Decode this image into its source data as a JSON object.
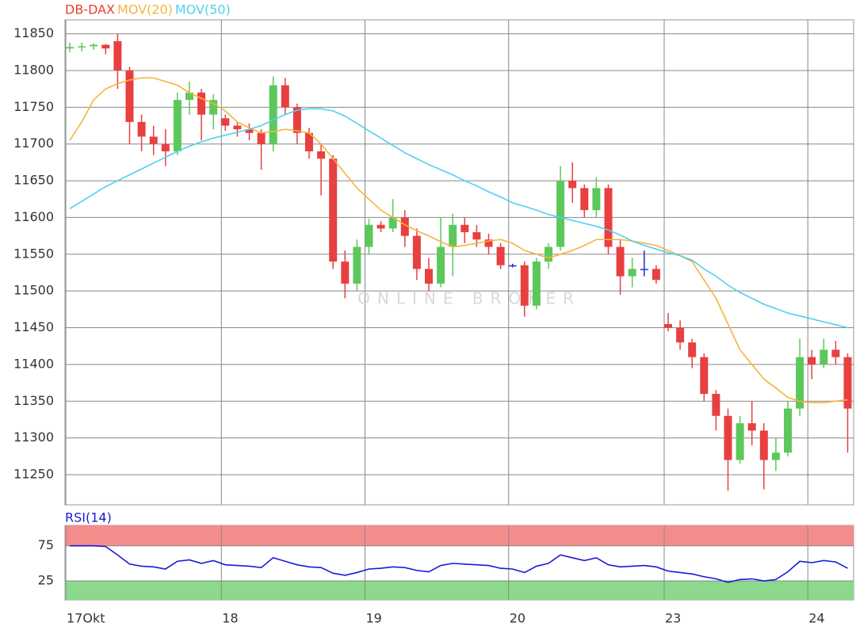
{
  "chart_data": [
    {
      "type": "candlestick",
      "name": "DB-DAX",
      "name_color": "#e8412c",
      "up_color": "#5cc85c",
      "down_color": "#e84040",
      "flat_color": "#2a2ad0",
      "watermark": "ONLINE BROKER",
      "open": [
        11830,
        11832,
        11833,
        11835,
        11840,
        11800,
        11730,
        11710,
        11700,
        11690,
        11760,
        11770,
        11740,
        11735,
        11725,
        11720,
        11715,
        11700,
        11780,
        11750,
        11715,
        11690,
        11680,
        11540,
        11510,
        11560,
        11590,
        11585,
        11600,
        11575,
        11530,
        11510,
        11560,
        11590,
        11580,
        11570,
        11560,
        11535,
        11535,
        11480,
        11540,
        11560,
        11650,
        11640,
        11610,
        11640,
        11560,
        11520,
        11530,
        11530,
        11455,
        11450,
        11430,
        11410,
        11360,
        11330,
        11270,
        11320,
        11310,
        11270,
        11280,
        11340,
        11410,
        11400,
        11420,
        11410
      ],
      "high": [
        11838,
        11838,
        11837,
        11836,
        11850,
        11805,
        11740,
        11725,
        11720,
        11770,
        11785,
        11775,
        11768,
        11740,
        11730,
        11728,
        11720,
        11792,
        11790,
        11755,
        11722,
        11700,
        11685,
        11555,
        11570,
        11598,
        11595,
        11625,
        11610,
        11585,
        11545,
        11600,
        11605,
        11600,
        11590,
        11578,
        11565,
        11537,
        11540,
        11545,
        11565,
        11670,
        11675,
        11645,
        11655,
        11645,
        11570,
        11545,
        11555,
        11535,
        11470,
        11460,
        11435,
        11415,
        11365,
        11340,
        11330,
        11350,
        11320,
        11300,
        11350,
        11435,
        11420,
        11435,
        11432,
        11415
      ],
      "low": [
        11825,
        11826,
        11828,
        11822,
        11775,
        11700,
        11690,
        11685,
        11670,
        11685,
        11740,
        11705,
        11720,
        11718,
        11710,
        11705,
        11665,
        11690,
        11740,
        11700,
        11680,
        11630,
        11530,
        11490,
        11500,
        11550,
        11580,
        11580,
        11560,
        11515,
        11500,
        11505,
        11520,
        11565,
        11560,
        11550,
        11530,
        11532,
        11465,
        11475,
        11530,
        11555,
        11620,
        11600,
        11600,
        11550,
        11495,
        11505,
        11520,
        11510,
        11445,
        11420,
        11395,
        11350,
        11310,
        11228,
        11265,
        11290,
        11230,
        11255,
        11275,
        11330,
        11380,
        11395,
        11400,
        11280
      ],
      "close": [
        11832,
        11833,
        11835,
        11830,
        11800,
        11730,
        11710,
        11700,
        11690,
        11760,
        11770,
        11740,
        11760,
        11725,
        11720,
        11715,
        11700,
        11780,
        11750,
        11715,
        11690,
        11680,
        11540,
        11510,
        11560,
        11590,
        11585,
        11600,
        11575,
        11530,
        11510,
        11560,
        11590,
        11580,
        11570,
        11560,
        11535,
        11535,
        11480,
        11540,
        11560,
        11650,
        11640,
        11610,
        11640,
        11560,
        11520,
        11530,
        11530,
        11515,
        11450,
        11430,
        11410,
        11360,
        11330,
        11270,
        11320,
        11310,
        11270,
        11280,
        11340,
        11410,
        11400,
        11420,
        11410,
        11340
      ],
      "series": [
        {
          "name": "MOV(20)",
          "color": "#f5b43c",
          "values": [
            11705,
            11730,
            11760,
            11775,
            11782,
            11787,
            11790,
            11790,
            11785,
            11780,
            11770,
            11762,
            11755,
            11745,
            11730,
            11722,
            11715,
            11717,
            11720,
            11718,
            11715,
            11700,
            11680,
            11660,
            11640,
            11625,
            11610,
            11600,
            11590,
            11582,
            11575,
            11567,
            11560,
            11562,
            11565,
            11568,
            11570,
            11565,
            11555,
            11550,
            11545,
            11550,
            11555,
            11562,
            11570,
            11570,
            11570,
            11568,
            11565,
            11562,
            11555,
            11548,
            11540,
            11515,
            11490,
            11455,
            11420,
            11400,
            11380,
            11368,
            11355,
            11350,
            11348,
            11348,
            11350,
            11352
          ]
        },
        {
          "name": "MOV(50)",
          "color": "#4fd0f0",
          "values": [
            11612,
            11622,
            11632,
            11642,
            11650,
            11658,
            11666,
            11674,
            11682,
            11690,
            11697,
            11703,
            11708,
            11712,
            11716,
            11720,
            11725,
            11733,
            11740,
            11746,
            11748,
            11748,
            11745,
            11738,
            11728,
            11718,
            11708,
            11698,
            11688,
            11680,
            11672,
            11665,
            11658,
            11650,
            11643,
            11635,
            11628,
            11620,
            11615,
            11610,
            11604,
            11600,
            11596,
            11592,
            11588,
            11583,
            11576,
            11568,
            11562,
            11557,
            11552,
            11548,
            11542,
            11530,
            11520,
            11508,
            11498,
            11490,
            11482,
            11476,
            11470,
            11466,
            11462,
            11458,
            11454,
            11450
          ]
        }
      ],
      "ylim": [
        11209,
        11869
      ],
      "yticks": [
        11250,
        11300,
        11350,
        11400,
        11450,
        11500,
        11550,
        11600,
        11650,
        11700,
        11750,
        11800,
        11850
      ],
      "grid": true
    },
    {
      "type": "line",
      "categories": [
        "17Okt",
        null,
        null,
        null,
        null,
        null,
        null,
        null,
        null,
        null,
        null,
        null,
        null,
        "18",
        null,
        null,
        null,
        null,
        null,
        null,
        null,
        null,
        null,
        null,
        null,
        "19",
        null,
        null,
        null,
        null,
        null,
        null,
        null,
        null,
        null,
        null,
        null,
        "20",
        null,
        null,
        null,
        null,
        null,
        null,
        null,
        null,
        null,
        null,
        null,
        null,
        "23",
        null,
        null,
        null,
        null,
        null,
        null,
        null,
        null,
        null,
        null,
        null,
        "24",
        null,
        null,
        null
      ],
      "series": [
        {
          "name": "RSI(14)",
          "color": "#1a1ad8",
          "values": [
            75,
            75,
            75,
            74,
            62,
            49,
            46,
            45,
            42,
            53,
            55,
            50,
            54,
            48,
            47,
            46,
            44,
            58,
            53,
            48,
            45,
            44,
            36,
            33,
            37,
            42,
            43,
            45,
            44,
            40,
            38,
            47,
            50,
            49,
            48,
            47,
            43,
            42,
            37,
            46,
            50,
            62,
            58,
            54,
            58,
            48,
            45,
            46,
            47,
            45,
            39,
            37,
            35,
            31,
            28,
            23,
            27,
            28,
            25,
            27,
            38,
            53,
            51,
            54,
            52,
            43
          ]
        }
      ],
      "upper_band_color": "#f58c8c",
      "lower_band_color": "#8cd88c",
      "ylim": [
        -2,
        104
      ],
      "yticks": [
        25,
        75
      ],
      "grid": true
    }
  ]
}
